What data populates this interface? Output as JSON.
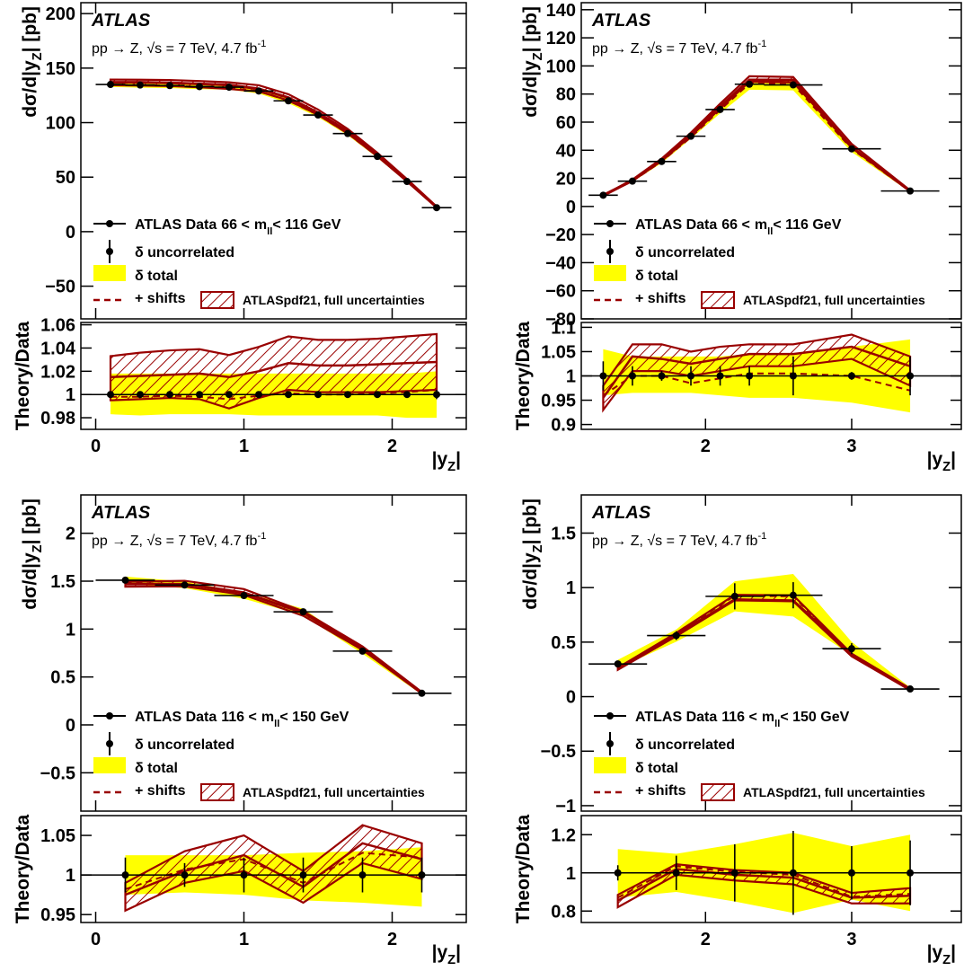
{
  "figure": {
    "atlas": "ATLAS",
    "process": "pp → Z, √s = 7 TeV, 4.7 fb",
    "process_sup": "-1",
    "ylabel_main_prefix": "dσ/d|y",
    "ylabel_main_sub": "Z",
    "ylabel_main_suffix": "| [pb]",
    "ylabel_ratio": "Theory/Data",
    "xlabel_prefix": "|y",
    "xlabel_sub": "Z",
    "xlabel_suffix": "|",
    "legend": {
      "data_prefix": "ATLAS Data",
      "mll": "m",
      "mll_sub": "ll",
      "uncorrelated": "δ uncorrelated",
      "total": "δ total",
      "shifts": "+ shifts",
      "theory": "ATLASpdf21, full uncertainties"
    }
  },
  "colors": {
    "band": "#ffff00",
    "theory": "#990000",
    "data": "#000000"
  },
  "chart_data": [
    {
      "type": "line",
      "panel": "top-left",
      "mass_range_lo": "66 <",
      "mass_range_hi": "< 116 GeV",
      "main_ylim": [
        -80,
        210
      ],
      "main_yticks": [
        -50,
        0,
        50,
        100,
        150,
        200
      ],
      "main_yticklabels": [
        "−50",
        "0",
        "50",
        "100",
        "150",
        "200"
      ],
      "ratio_ylim": [
        0.97,
        1.062
      ],
      "ratio_yticks": [
        0.98,
        1.0,
        1.02,
        1.04,
        1.06
      ],
      "ratio_yticklabels": [
        "0.98",
        "1",
        "1.02",
        "1.04",
        "1.06"
      ],
      "xlim": [
        -0.1,
        2.5
      ],
      "xticks": [
        0,
        1,
        2
      ],
      "xticklabels": [
        "0",
        "1",
        "2"
      ],
      "x": [
        0.1,
        0.3,
        0.5,
        0.7,
        0.9,
        1.1,
        1.3,
        1.5,
        1.7,
        1.9,
        2.1,
        2.3
      ],
      "xerr": [
        0.1,
        0.1,
        0.1,
        0.1,
        0.1,
        0.1,
        0.1,
        0.1,
        0.1,
        0.1,
        0.1,
        0.1
      ],
      "data": [
        135,
        134.5,
        134,
        133,
        132.5,
        129,
        120,
        107,
        90,
        69,
        46,
        22
      ],
      "data_err": [
        0.5,
        0.5,
        0.5,
        0.5,
        0.5,
        0.5,
        0.5,
        0.5,
        0.5,
        0.5,
        0.5,
        0.5
      ],
      "theory": [
        137,
        137,
        136.5,
        135.5,
        134.5,
        131,
        123,
        109,
        92,
        70,
        46.5,
        22.5
      ],
      "ratio_theory": [
        1.015,
        1.016,
        1.017,
        1.018,
        1.015,
        1.02,
        1.027,
        1.025,
        1.025,
        1.026,
        1.027,
        1.028
      ],
      "ratio_theory_lo": [
        0.995,
        0.996,
        0.997,
        0.996,
        0.988,
        0.997,
        1.004,
        1.002,
        1.002,
        1.002,
        1.003,
        1.004
      ],
      "ratio_theory_hi": [
        1.033,
        1.036,
        1.038,
        1.039,
        1.034,
        1.041,
        1.05,
        1.047,
        1.047,
        1.048,
        1.05,
        1.052
      ],
      "ratio_shifts": [
        0.998,
        0.998,
        0.999,
        0.998,
        0.996,
        0.999,
        1.001,
        1.0,
        1.0,
        1.001,
        1.002,
        1.004
      ],
      "ratio_data_err": [
        0.002,
        0.002,
        0.002,
        0.002,
        0.002,
        0.002,
        0.002,
        0.002,
        0.002,
        0.002,
        0.002,
        0.004
      ],
      "ratio_total_lo": [
        0.983,
        0.982,
        0.983,
        0.983,
        0.983,
        0.982,
        0.982,
        0.982,
        0.982,
        0.982,
        0.98,
        0.98
      ],
      "ratio_total_hi": [
        1.018,
        1.018,
        1.018,
        1.018,
        1.018,
        1.018,
        1.018,
        1.018,
        1.018,
        1.018,
        1.018,
        1.02
      ]
    },
    {
      "type": "line",
      "panel": "top-right",
      "mass_range_lo": "66 <",
      "mass_range_hi": "< 116 GeV",
      "main_ylim": [
        -80,
        145
      ],
      "main_yticks": [
        -80,
        -60,
        -40,
        -20,
        0,
        20,
        40,
        60,
        80,
        100,
        120,
        140
      ],
      "main_yticklabels": [
        "−80",
        "−60",
        "−40",
        "−20",
        "0",
        "20",
        "40",
        "60",
        "80",
        "100",
        "120",
        "140"
      ],
      "ratio_ylim": [
        0.89,
        1.11
      ],
      "ratio_yticks": [
        0.9,
        0.95,
        1.0,
        1.05,
        1.1
      ],
      "ratio_yticklabels": [
        "0.9",
        "0.95",
        "1",
        "1.05",
        "1.1"
      ],
      "xlim": [
        1.15,
        3.75
      ],
      "xticks": [
        2,
        3
      ],
      "xticklabels": [
        "2",
        "3"
      ],
      "x": [
        1.3,
        1.5,
        1.7,
        1.9,
        2.1,
        2.3,
        2.6,
        3.0,
        3.4
      ],
      "xerr": [
        0.1,
        0.1,
        0.1,
        0.1,
        0.1,
        0.1,
        0.2,
        0.2,
        0.2
      ],
      "data": [
        8,
        18,
        32,
        50,
        69,
        87,
        86.5,
        41,
        11
      ],
      "data_err": [
        0.5,
        0.5,
        0.5,
        0.5,
        0.5,
        0.5,
        0.5,
        0.5,
        0.5
      ],
      "theory": [
        8,
        18.5,
        33,
        51,
        71,
        90,
        90,
        42,
        11
      ],
      "ratio_theory": [
        0.955,
        1.04,
        1.035,
        1.025,
        1.035,
        1.045,
        1.045,
        1.06,
        1.02
      ],
      "ratio_theory_lo": [
        0.93,
        1.01,
        1.01,
        1.0,
        1.01,
        1.02,
        1.02,
        1.035,
        0.98
      ],
      "ratio_theory_hi": [
        0.98,
        1.065,
        1.065,
        1.05,
        1.06,
        1.065,
        1.065,
        1.085,
        1.04
      ],
      "ratio_shifts": [
        0.96,
        1.0,
        1.0,
        0.985,
        0.995,
        1.005,
        1.005,
        1.0,
        0.97
      ],
      "ratio_data_err": [
        0.03,
        0.02,
        0.01,
        0.02,
        0.02,
        0.02,
        0.04,
        0.008,
        0.04
      ],
      "ratio_total_lo": [
        0.96,
        0.965,
        0.965,
        0.965,
        0.96,
        0.955,
        0.955,
        0.945,
        0.925
      ],
      "ratio_total_hi": [
        1.055,
        1.04,
        1.04,
        1.04,
        1.04,
        1.045,
        1.045,
        1.06,
        1.075
      ]
    },
    {
      "type": "line",
      "panel": "bottom-left",
      "mass_range_lo": "116 <",
      "mass_range_hi": "< 150 GeV",
      "main_ylim": [
        -0.9,
        2.4
      ],
      "main_yticks": [
        -0.5,
        0,
        0.5,
        1,
        1.5,
        2
      ],
      "main_yticklabels": [
        "−0.5",
        "0",
        "0.5",
        "1",
        "1.5",
        "2"
      ],
      "ratio_ylim": [
        0.94,
        1.075
      ],
      "ratio_yticks": [
        0.95,
        1.0,
        1.05
      ],
      "ratio_yticklabels": [
        "0.95",
        "1",
        "1.05"
      ],
      "xlim": [
        -0.1,
        2.5
      ],
      "xticks": [
        0,
        1,
        2
      ],
      "xticklabels": [
        "0",
        "1",
        "2"
      ],
      "x": [
        0.2,
        0.6,
        1.0,
        1.4,
        1.8,
        2.2
      ],
      "xerr": [
        0.2,
        0.2,
        0.2,
        0.2,
        0.2,
        0.2
      ],
      "data": [
        1.51,
        1.46,
        1.35,
        1.18,
        0.77,
        0.33
      ],
      "data_err": [
        0.01,
        0.01,
        0.02,
        0.02,
        0.02,
        0.01
      ],
      "theory": [
        1.47,
        1.47,
        1.38,
        1.17,
        0.8,
        0.33
      ],
      "ratio_theory": [
        0.975,
        1.005,
        1.025,
        0.985,
        1.04,
        1.02
      ],
      "ratio_theory_lo": [
        0.955,
        0.99,
        1.005,
        0.965,
        1.015,
        0.995
      ],
      "ratio_theory_hi": [
        0.99,
        1.03,
        1.05,
        1.005,
        1.063,
        1.04
      ],
      "ratio_shifts": [
        0.982,
        1.007,
        1.02,
        0.99,
        1.028,
        1.022
      ],
      "ratio_data_err": [
        0.022,
        0.015,
        0.022,
        0.022,
        0.022,
        0.022
      ],
      "ratio_total_lo": [
        0.975,
        0.978,
        0.975,
        0.968,
        0.965,
        0.96
      ],
      "ratio_total_hi": [
        1.025,
        1.025,
        1.025,
        1.028,
        1.03,
        1.035
      ]
    },
    {
      "type": "line",
      "panel": "bottom-right",
      "mass_range_lo": "116 <",
      "mass_range_hi": "< 150 GeV",
      "main_ylim": [
        -1.05,
        1.85
      ],
      "main_yticks": [
        -1,
        -0.5,
        0,
        0.5,
        1,
        1.5
      ],
      "main_yticklabels": [
        "−1",
        "−0.5",
        "0",
        "0.5",
        "1",
        "1.5"
      ],
      "ratio_ylim": [
        0.74,
        1.3
      ],
      "ratio_yticks": [
        0.8,
        1.0,
        1.2
      ],
      "ratio_yticklabels": [
        "0.8",
        "1",
        "1.2"
      ],
      "xlim": [
        1.15,
        3.75
      ],
      "xticks": [
        2,
        3
      ],
      "xticklabels": [
        "2",
        "3"
      ],
      "x": [
        1.4,
        1.8,
        2.2,
        2.6,
        3.0,
        3.4
      ],
      "xerr": [
        0.2,
        0.2,
        0.2,
        0.2,
        0.2,
        0.2
      ],
      "data": [
        0.3,
        0.56,
        0.92,
        0.93,
        0.44,
        0.07
      ],
      "data_err": [
        0.01,
        0.04,
        0.12,
        0.12,
        0.05,
        0.005
      ],
      "theory": [
        0.26,
        0.57,
        0.89,
        0.88,
        0.39,
        0.07
      ],
      "ratio_theory": [
        0.855,
        1.02,
        0.99,
        0.975,
        0.87,
        0.88
      ],
      "ratio_theory_lo": [
        0.82,
        0.99,
        0.96,
        0.94,
        0.84,
        0.84
      ],
      "ratio_theory_hi": [
        0.885,
        1.045,
        1.015,
        1.0,
        0.895,
        0.92
      ],
      "ratio_shifts": [
        0.87,
        1.035,
        1.005,
        0.99,
        0.875,
        0.89
      ],
      "ratio_data_err": [
        0.04,
        0.09,
        0.15,
        0.22,
        0.14,
        0.17
      ],
      "ratio_total_lo": [
        0.87,
        0.9,
        0.85,
        0.79,
        0.86,
        0.8
      ],
      "ratio_total_hi": [
        1.125,
        1.1,
        1.15,
        1.21,
        1.14,
        1.2
      ]
    }
  ]
}
